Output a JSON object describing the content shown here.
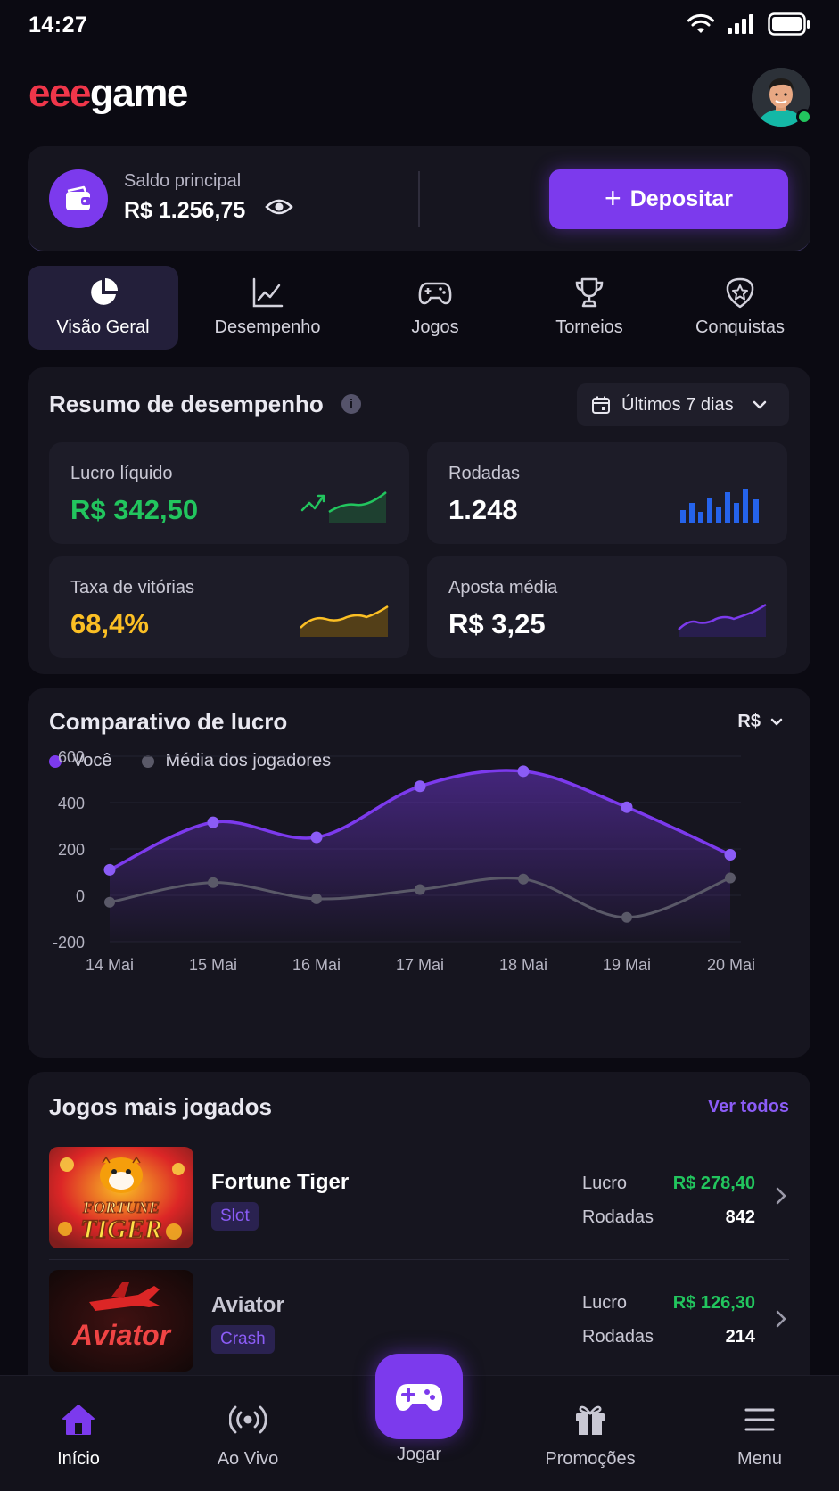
{
  "status_bar": {
    "time": "14:27"
  },
  "brand": {
    "logo_part1": "eee",
    "logo_part2": "game"
  },
  "balance": {
    "label": "Saldo principal",
    "value": "R$ 1.256,75",
    "deposit_label": "Depositar"
  },
  "tabs": [
    {
      "label": "Visão Geral",
      "icon": "pie-chart-icon",
      "active": true
    },
    {
      "label": "Desempenho",
      "icon": "line-chart-icon",
      "active": false
    },
    {
      "label": "Jogos",
      "icon": "gamepad-icon",
      "active": false
    },
    {
      "label": "Torneios",
      "icon": "trophy-icon",
      "active": false
    },
    {
      "label": "Conquistas",
      "icon": "medal-icon",
      "active": false
    }
  ],
  "summary": {
    "title": "Resumo de desempenho",
    "period": "Últimos 7 dias",
    "metrics": [
      {
        "label": "Lucro líquido",
        "value": "R$ 342,50",
        "color": "#22c55e"
      },
      {
        "label": "Rodadas",
        "value": "1.248",
        "color": "#ffffff"
      },
      {
        "label": "Taxa de vitórias",
        "value": "68,4%",
        "color": "#fbbf24"
      },
      {
        "label": "Aposta média",
        "value": "R$ 3,25",
        "color": "#ffffff"
      }
    ]
  },
  "comparison": {
    "title": "Comparativo de lucro",
    "currency": "R$",
    "legend": [
      "Você",
      "Média dos jogadores"
    ]
  },
  "chart_data": {
    "type": "area",
    "title": "Comparativo de lucro",
    "categories": [
      "14 Mai",
      "15 Mai",
      "16 Mai",
      "17 Mai",
      "18 Mai",
      "19 Mai",
      "20 Mai"
    ],
    "series": [
      {
        "name": "Você",
        "values": [
          110,
          315,
          250,
          470,
          535,
          380,
          175
        ],
        "color": "#7c3aed"
      },
      {
        "name": "Média dos jogadores",
        "values": [
          -30,
          55,
          -15,
          25,
          70,
          -95,
          75
        ],
        "color": "#5a5968"
      }
    ],
    "yticks": [
      600,
      400,
      200,
      0,
      -200
    ],
    "ylim": [
      -200,
      600
    ],
    "grid": true,
    "legend_position": "top-left"
  },
  "games": {
    "title": "Jogos mais jogados",
    "see_all": "Ver todos",
    "items": [
      {
        "name": "Fortune Tiger",
        "category": "Slot",
        "profit_label": "Lucro",
        "profit": "R$ 278,40",
        "rounds_label": "Rodadas",
        "rounds": "842",
        "thumb_text": [
          "FORTUNE",
          "TIGER"
        ]
      },
      {
        "name": "Aviator",
        "category": "Crash",
        "profit_label": "Lucro",
        "profit": "R$ 126,30",
        "rounds_label": "Rodadas",
        "rounds": "214",
        "thumb_text": [
          "Aviator"
        ]
      }
    ]
  },
  "bottom_nav": {
    "items": [
      {
        "label": "Início",
        "icon": "home-icon",
        "active": true
      },
      {
        "label": "Ao Vivo",
        "icon": "live-broadcast-icon",
        "active": false
      },
      {
        "label": "Jogar",
        "icon": "gamepad-icon",
        "active": false
      },
      {
        "label": "Promoções",
        "icon": "gift-icon",
        "active": false
      },
      {
        "label": "Menu",
        "icon": "hamburger-menu-icon",
        "active": false
      }
    ]
  },
  "colors": {
    "accent": "#7c3aed",
    "positive": "#22c55e",
    "warning": "#fbbf24",
    "background": "#0b0a12",
    "card": "#16151f"
  }
}
